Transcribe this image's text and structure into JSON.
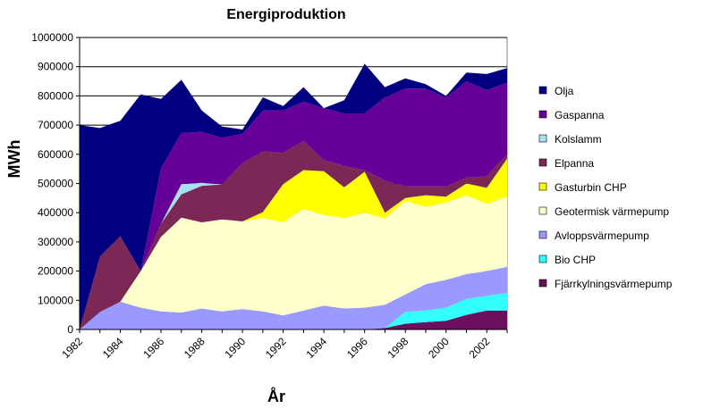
{
  "chart_data": {
    "type": "area",
    "stacked": true,
    "title": "Energiproduktion",
    "xlabel": "År",
    "ylabel": "MWh",
    "xlim": [
      1982,
      2003
    ],
    "ylim": [
      0,
      1000000
    ],
    "y_ticks": [
      "0",
      "100000",
      "200000",
      "300000",
      "400000",
      "500000",
      "600000",
      "700000",
      "800000",
      "900000",
      "1000000"
    ],
    "x_ticks": [
      "1982",
      "1984",
      "1986",
      "1988",
      "1990",
      "1992",
      "1994",
      "1996",
      "1998",
      "2000",
      "2002"
    ],
    "grid": "horizontal",
    "legend_position": "right",
    "x": [
      1982,
      1983,
      1984,
      1985,
      1986,
      1987,
      1988,
      1989,
      1990,
      1991,
      1992,
      1993,
      1994,
      1995,
      1996,
      1997,
      1998,
      1999,
      2000,
      2001,
      2002,
      2003
    ],
    "series": [
      {
        "name": "Fjärrkylningsvärmepump",
        "color": "#6b0f5e",
        "values": [
          0,
          0,
          0,
          0,
          0,
          0,
          0,
          0,
          0,
          0,
          0,
          0,
          0,
          0,
          0,
          5000,
          20000,
          25000,
          30000,
          50000,
          65000,
          65000
        ]
      },
      {
        "name": "Bio CHP",
        "color": "#33ffff",
        "values": [
          0,
          0,
          0,
          0,
          0,
          0,
          0,
          0,
          0,
          0,
          0,
          0,
          0,
          0,
          0,
          0,
          40000,
          40000,
          45000,
          55000,
          50000,
          60000
        ]
      },
      {
        "name": "Avloppsvärmepump",
        "color": "#9999ff",
        "values": [
          0,
          60000,
          95000,
          75000,
          62000,
          58000,
          72000,
          62000,
          70000,
          62000,
          48000,
          65000,
          82000,
          72000,
          75000,
          80000,
          60000,
          90000,
          95000,
          85000,
          85000,
          90000
        ]
      },
      {
        "name": "Geotermisk värmepump",
        "color": "#ffffcc",
        "values": [
          0,
          0,
          0,
          125000,
          255000,
          325000,
          295000,
          315000,
          300000,
          320000,
          320000,
          348000,
          310000,
          310000,
          325000,
          295000,
          320000,
          265000,
          265000,
          270000,
          230000,
          240000
        ]
      },
      {
        "name": "Gasturbin CHP",
        "color": "#ffff00",
        "values": [
          0,
          0,
          0,
          0,
          0,
          0,
          0,
          0,
          0,
          20000,
          130000,
          133000,
          150000,
          105000,
          140000,
          20000,
          10000,
          40000,
          20000,
          40000,
          55000,
          130000
        ]
      },
      {
        "name": "Elpanna",
        "color": "#7b2857",
        "values": [
          0,
          190000,
          225000,
          0,
          45000,
          80000,
          125000,
          120000,
          200000,
          208000,
          107000,
          100000,
          38000,
          73000,
          5000,
          110000,
          40000,
          30000,
          35000,
          20000,
          40000,
          15000
        ]
      },
      {
        "name": "Kolslamm",
        "color": "#a6e3f0",
        "values": [
          0,
          0,
          0,
          0,
          0,
          35000,
          10000,
          0,
          0,
          0,
          0,
          0,
          0,
          0,
          0,
          0,
          0,
          0,
          0,
          0,
          0,
          0
        ]
      },
      {
        "name": "Gaspanna",
        "color": "#660099",
        "values": [
          0,
          0,
          0,
          0,
          190000,
          175000,
          175000,
          160000,
          100000,
          140000,
          145000,
          134000,
          178000,
          180000,
          195000,
          285000,
          335000,
          335000,
          305000,
          330000,
          295000,
          245000
        ]
      },
      {
        "name": "Olja",
        "color": "#000080",
        "values": [
          700000,
          440000,
          395000,
          605000,
          238000,
          182000,
          73000,
          38000,
          15000,
          45000,
          15000,
          50000,
          0,
          45000,
          170000,
          35000,
          35000,
          15000,
          5000,
          30000,
          55000,
          50000
        ]
      }
    ]
  }
}
